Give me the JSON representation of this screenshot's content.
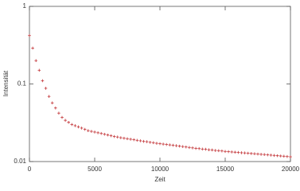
{
  "chart_data": {
    "type": "scatter",
    "xlabel": "Zeit",
    "ylabel": "Intensität",
    "log_y": true,
    "color": "#c8474a",
    "xlim": [
      0,
      20000
    ],
    "xticks": [
      0,
      5000,
      10000,
      15000,
      20000
    ],
    "ylim": [
      0.01,
      1
    ],
    "yticks": [
      0.01,
      0.1,
      1
    ],
    "x": [
      0,
      250,
      500,
      750,
      1000,
      1250,
      1500,
      1750,
      2000,
      2250,
      2500,
      2750,
      3000,
      3250,
      3500,
      3750,
      4000,
      4250,
      4500,
      4750,
      5000,
      5250,
      5500,
      5750,
      6000,
      6250,
      6500,
      6750,
      7000,
      7250,
      7500,
      7750,
      8000,
      8250,
      8500,
      8750,
      9000,
      9250,
      9500,
      9750,
      10000,
      10250,
      10500,
      10750,
      11000,
      11250,
      11500,
      11750,
      12000,
      12250,
      12500,
      12750,
      13000,
      13250,
      13500,
      13750,
      14000,
      14250,
      14500,
      14750,
      15000,
      15250,
      15500,
      15750,
      16000,
      16250,
      16500,
      16750,
      17000,
      17250,
      17500,
      17750,
      18000,
      18250,
      18500,
      18750,
      19000,
      19250,
      19500,
      19750,
      20000
    ],
    "values": [
      0.42,
      0.29,
      0.2,
      0.15,
      0.11,
      0.088,
      0.069,
      0.057,
      0.049,
      0.042,
      0.037,
      0.034,
      0.032,
      0.03,
      0.029,
      0.028,
      0.027,
      0.026,
      0.025,
      0.0245,
      0.024,
      0.0235,
      0.023,
      0.0225,
      0.022,
      0.0215,
      0.021,
      0.0207,
      0.0203,
      0.02,
      0.0197,
      0.0194,
      0.0191,
      0.0188,
      0.0185,
      0.0182,
      0.018,
      0.0177,
      0.0175,
      0.0172,
      0.017,
      0.0168,
      0.0166,
      0.0164,
      0.0162,
      0.016,
      0.0158,
      0.0156,
      0.0154,
      0.0152,
      0.015,
      0.0148,
      0.0147,
      0.0145,
      0.0144,
      0.0142,
      0.0141,
      0.0139,
      0.0138,
      0.0137,
      0.0135,
      0.0134,
      0.0133,
      0.0132,
      0.0131,
      0.013,
      0.0129,
      0.0128,
      0.0127,
      0.0126,
      0.0125,
      0.0124,
      0.0123,
      0.0122,
      0.0121,
      0.012,
      0.0119,
      0.0118,
      0.0117,
      0.0116,
      0.0115
    ]
  }
}
